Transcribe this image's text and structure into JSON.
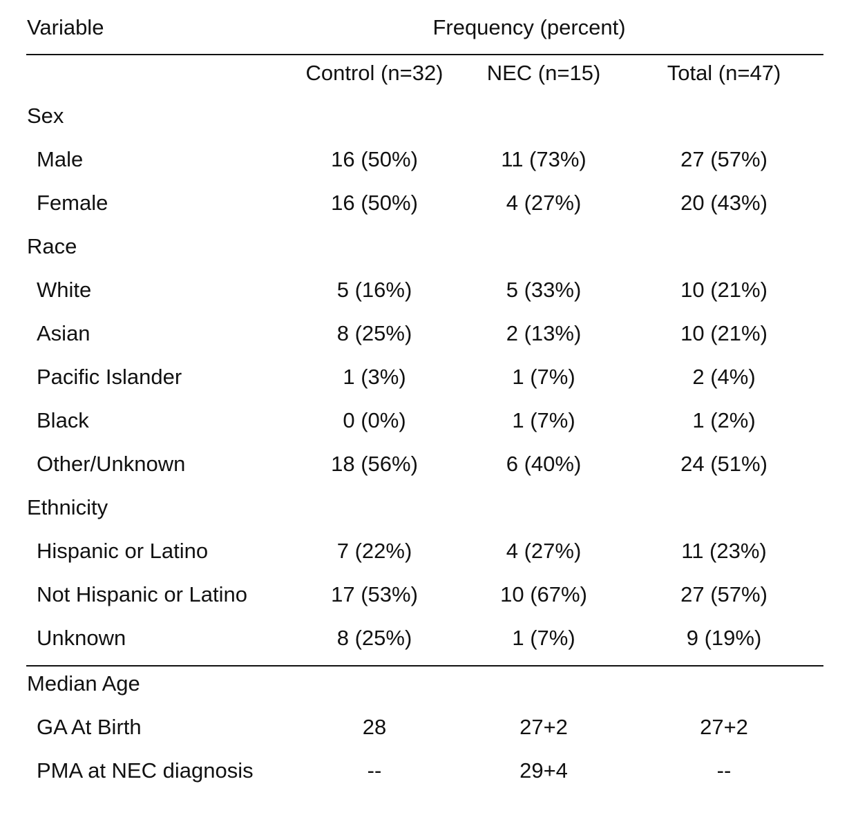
{
  "header": {
    "variable_label": "Variable",
    "frequency_label": "Frequency (percent)",
    "columns": [
      "Control (n=32)",
      "NEC (n=15)",
      "Total (n=47)"
    ]
  },
  "sections": [
    {
      "title": "Sex",
      "rows": [
        {
          "label": "Male",
          "control": "16 (50%)",
          "nec": "11 (73%)",
          "total": "27 (57%)"
        },
        {
          "label": "Female",
          "control": "16 (50%)",
          "nec": "4 (27%)",
          "total": "20 (43%)"
        }
      ]
    },
    {
      "title": "Race",
      "rows": [
        {
          "label": "White",
          "control": "5 (16%)",
          "nec": "5 (33%)",
          "total": "10 (21%)"
        },
        {
          "label": "Asian",
          "control": "8 (25%)",
          "nec": "2 (13%)",
          "total": "10 (21%)"
        },
        {
          "label": "Pacific Islander",
          "control": "1 (3%)",
          "nec": "1 (7%)",
          "total": "2 (4%)"
        },
        {
          "label": "Black",
          "control": "0 (0%)",
          "nec": "1 (7%)",
          "total": "1 (2%)"
        },
        {
          "label": "Other/Unknown",
          "control": "18 (56%)",
          "nec": "6 (40%)",
          "total": "24 (51%)"
        }
      ]
    },
    {
      "title": "Ethnicity",
      "rows": [
        {
          "label": "Hispanic or Latino",
          "control": "7 (22%)",
          "nec": "4 (27%)",
          "total": "11 (23%)"
        },
        {
          "label": "Not Hispanic or Latino",
          "control": "17 (53%)",
          "nec": "10 (67%)",
          "total": "27 (57%)"
        },
        {
          "label": "Unknown",
          "control": "8 (25%)",
          "nec": "1 (7%)",
          "total": "9 (19%)"
        }
      ]
    },
    {
      "title": "Median Age",
      "rows": [
        {
          "label": "GA At Birth",
          "control": "28",
          "nec": "27+2",
          "total": "27+2"
        },
        {
          "label": "PMA at NEC diagnosis",
          "control": "--",
          "nec": "29+4",
          "total": "--"
        }
      ]
    }
  ]
}
